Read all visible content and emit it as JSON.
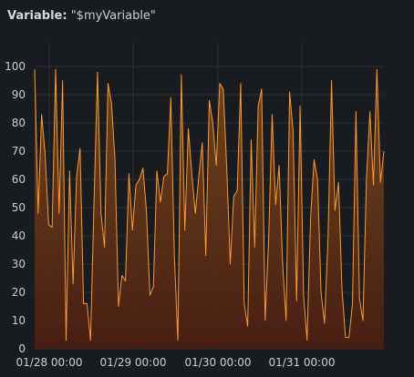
{
  "panel": {
    "variable_label": "Variable:",
    "variable_value": "\"$myVariable\""
  },
  "colors": {
    "background": "#181b1f",
    "line": "#ff9830",
    "fill_top": "#7a4a1c",
    "fill_bottom": "#4a1e12",
    "grid": "#2c3235",
    "text": "#c7d0d9"
  },
  "chart_data": {
    "type": "area",
    "title": "",
    "xlabel": "",
    "ylabel": "",
    "ylim": [
      0,
      100
    ],
    "yticks": [
      0,
      10,
      20,
      30,
      40,
      50,
      60,
      70,
      80,
      90,
      100
    ],
    "xticks": [
      "01/28 00:00",
      "01/29 00:00",
      "01/30 00:00",
      "01/31 00:00"
    ],
    "grid": true,
    "legend": "none",
    "series": [
      {
        "values": [
          99,
          48,
          83,
          69,
          44,
          43,
          99,
          48,
          95,
          3,
          63,
          23,
          61,
          71,
          16,
          16,
          3,
          52,
          98,
          48,
          36,
          94,
          87,
          67,
          15,
          26,
          24,
          62,
          42,
          58,
          60,
          64,
          49,
          19,
          22,
          63,
          52,
          61,
          62,
          89,
          33,
          3,
          97,
          42,
          78,
          62,
          48,
          61,
          73,
          33,
          88,
          80,
          65,
          94,
          92,
          64,
          30,
          54,
          56,
          94,
          16,
          8,
          74,
          36,
          86,
          92,
          10,
          39,
          83,
          51,
          65,
          30,
          10,
          91,
          77,
          17,
          86,
          19,
          3,
          46,
          67,
          60,
          20,
          9,
          39,
          95,
          49,
          59,
          21,
          4,
          4,
          16,
          84,
          18,
          10,
          60,
          84,
          58,
          99,
          59,
          70
        ]
      }
    ]
  }
}
